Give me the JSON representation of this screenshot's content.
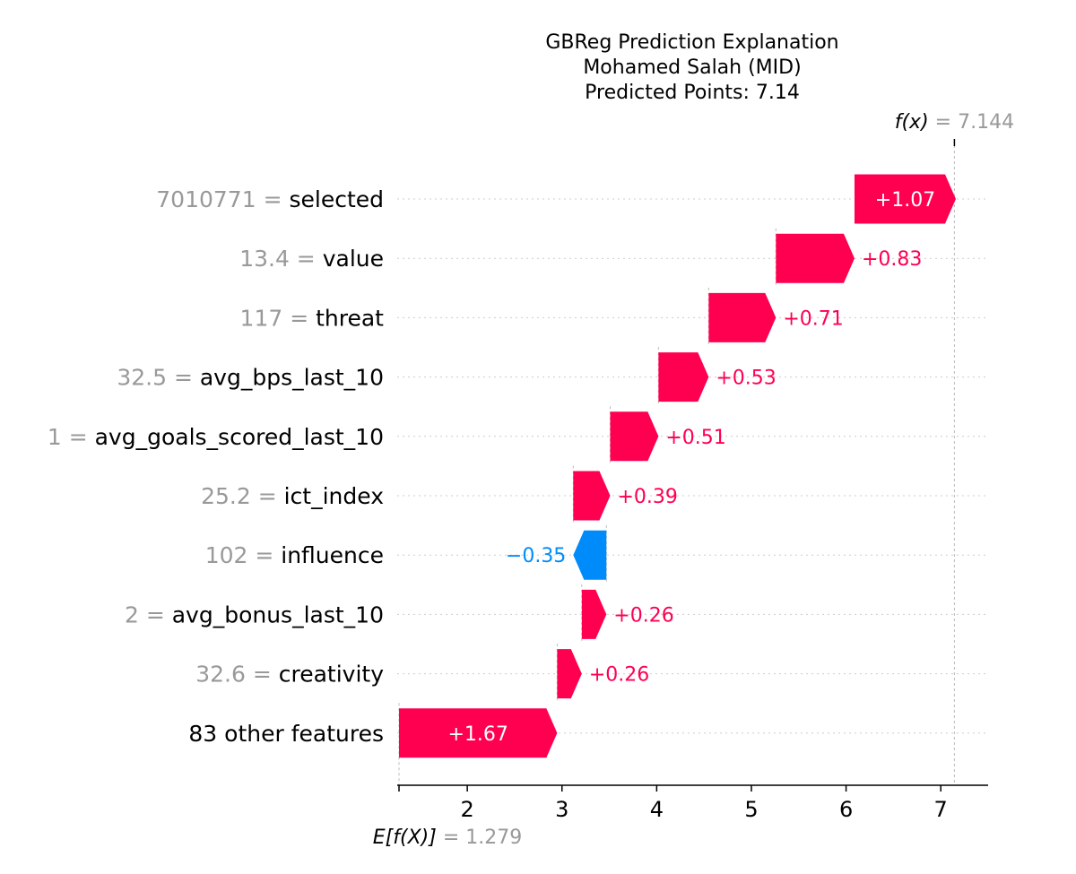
{
  "chart_data": {
    "type": "waterfall",
    "title_lines": [
      "GBReg Prediction Explanation",
      "Mohamed Salah (MID)",
      "Predicted Points: 7.14"
    ],
    "fx_label": "f(x)",
    "fx_equals": "= 7.144",
    "fx_value": 7.144,
    "base_label": "E[f(X)]",
    "base_equals": "= 1.279",
    "base_value": 1.279,
    "x_ticks": [
      2,
      3,
      4,
      5,
      6,
      7
    ],
    "x_range": [
      1.26,
      7.5
    ],
    "features": [
      {
        "value": "7010771",
        "name": "selected",
        "contribution": 1.07,
        "label": "+1.07"
      },
      {
        "value": "13.4",
        "name": "value",
        "contribution": 0.83,
        "label": "+0.83"
      },
      {
        "value": "117",
        "name": "threat",
        "contribution": 0.71,
        "label": "+0.71"
      },
      {
        "value": "32.5",
        "name": "avg_bps_last_10",
        "contribution": 0.53,
        "label": "+0.53"
      },
      {
        "value": "1",
        "name": "avg_goals_scored_last_10",
        "contribution": 0.51,
        "label": "+0.51"
      },
      {
        "value": "25.2",
        "name": "ict_index",
        "contribution": 0.39,
        "label": "+0.39"
      },
      {
        "value": "102",
        "name": "influence",
        "contribution": -0.35,
        "label": "−0.35"
      },
      {
        "value": "2",
        "name": "avg_bonus_last_10",
        "contribution": 0.26,
        "label": "+0.26"
      },
      {
        "value": "32.6",
        "name": "creativity",
        "contribution": 0.26,
        "label": "+0.26"
      },
      {
        "value": "",
        "name": "83 other features",
        "contribution": 1.67,
        "label": "+1.67"
      }
    ],
    "colors": {
      "positive": "#ff0051",
      "negative": "#008bfb",
      "value_text": "#999999",
      "grid": "#cccccc"
    }
  }
}
